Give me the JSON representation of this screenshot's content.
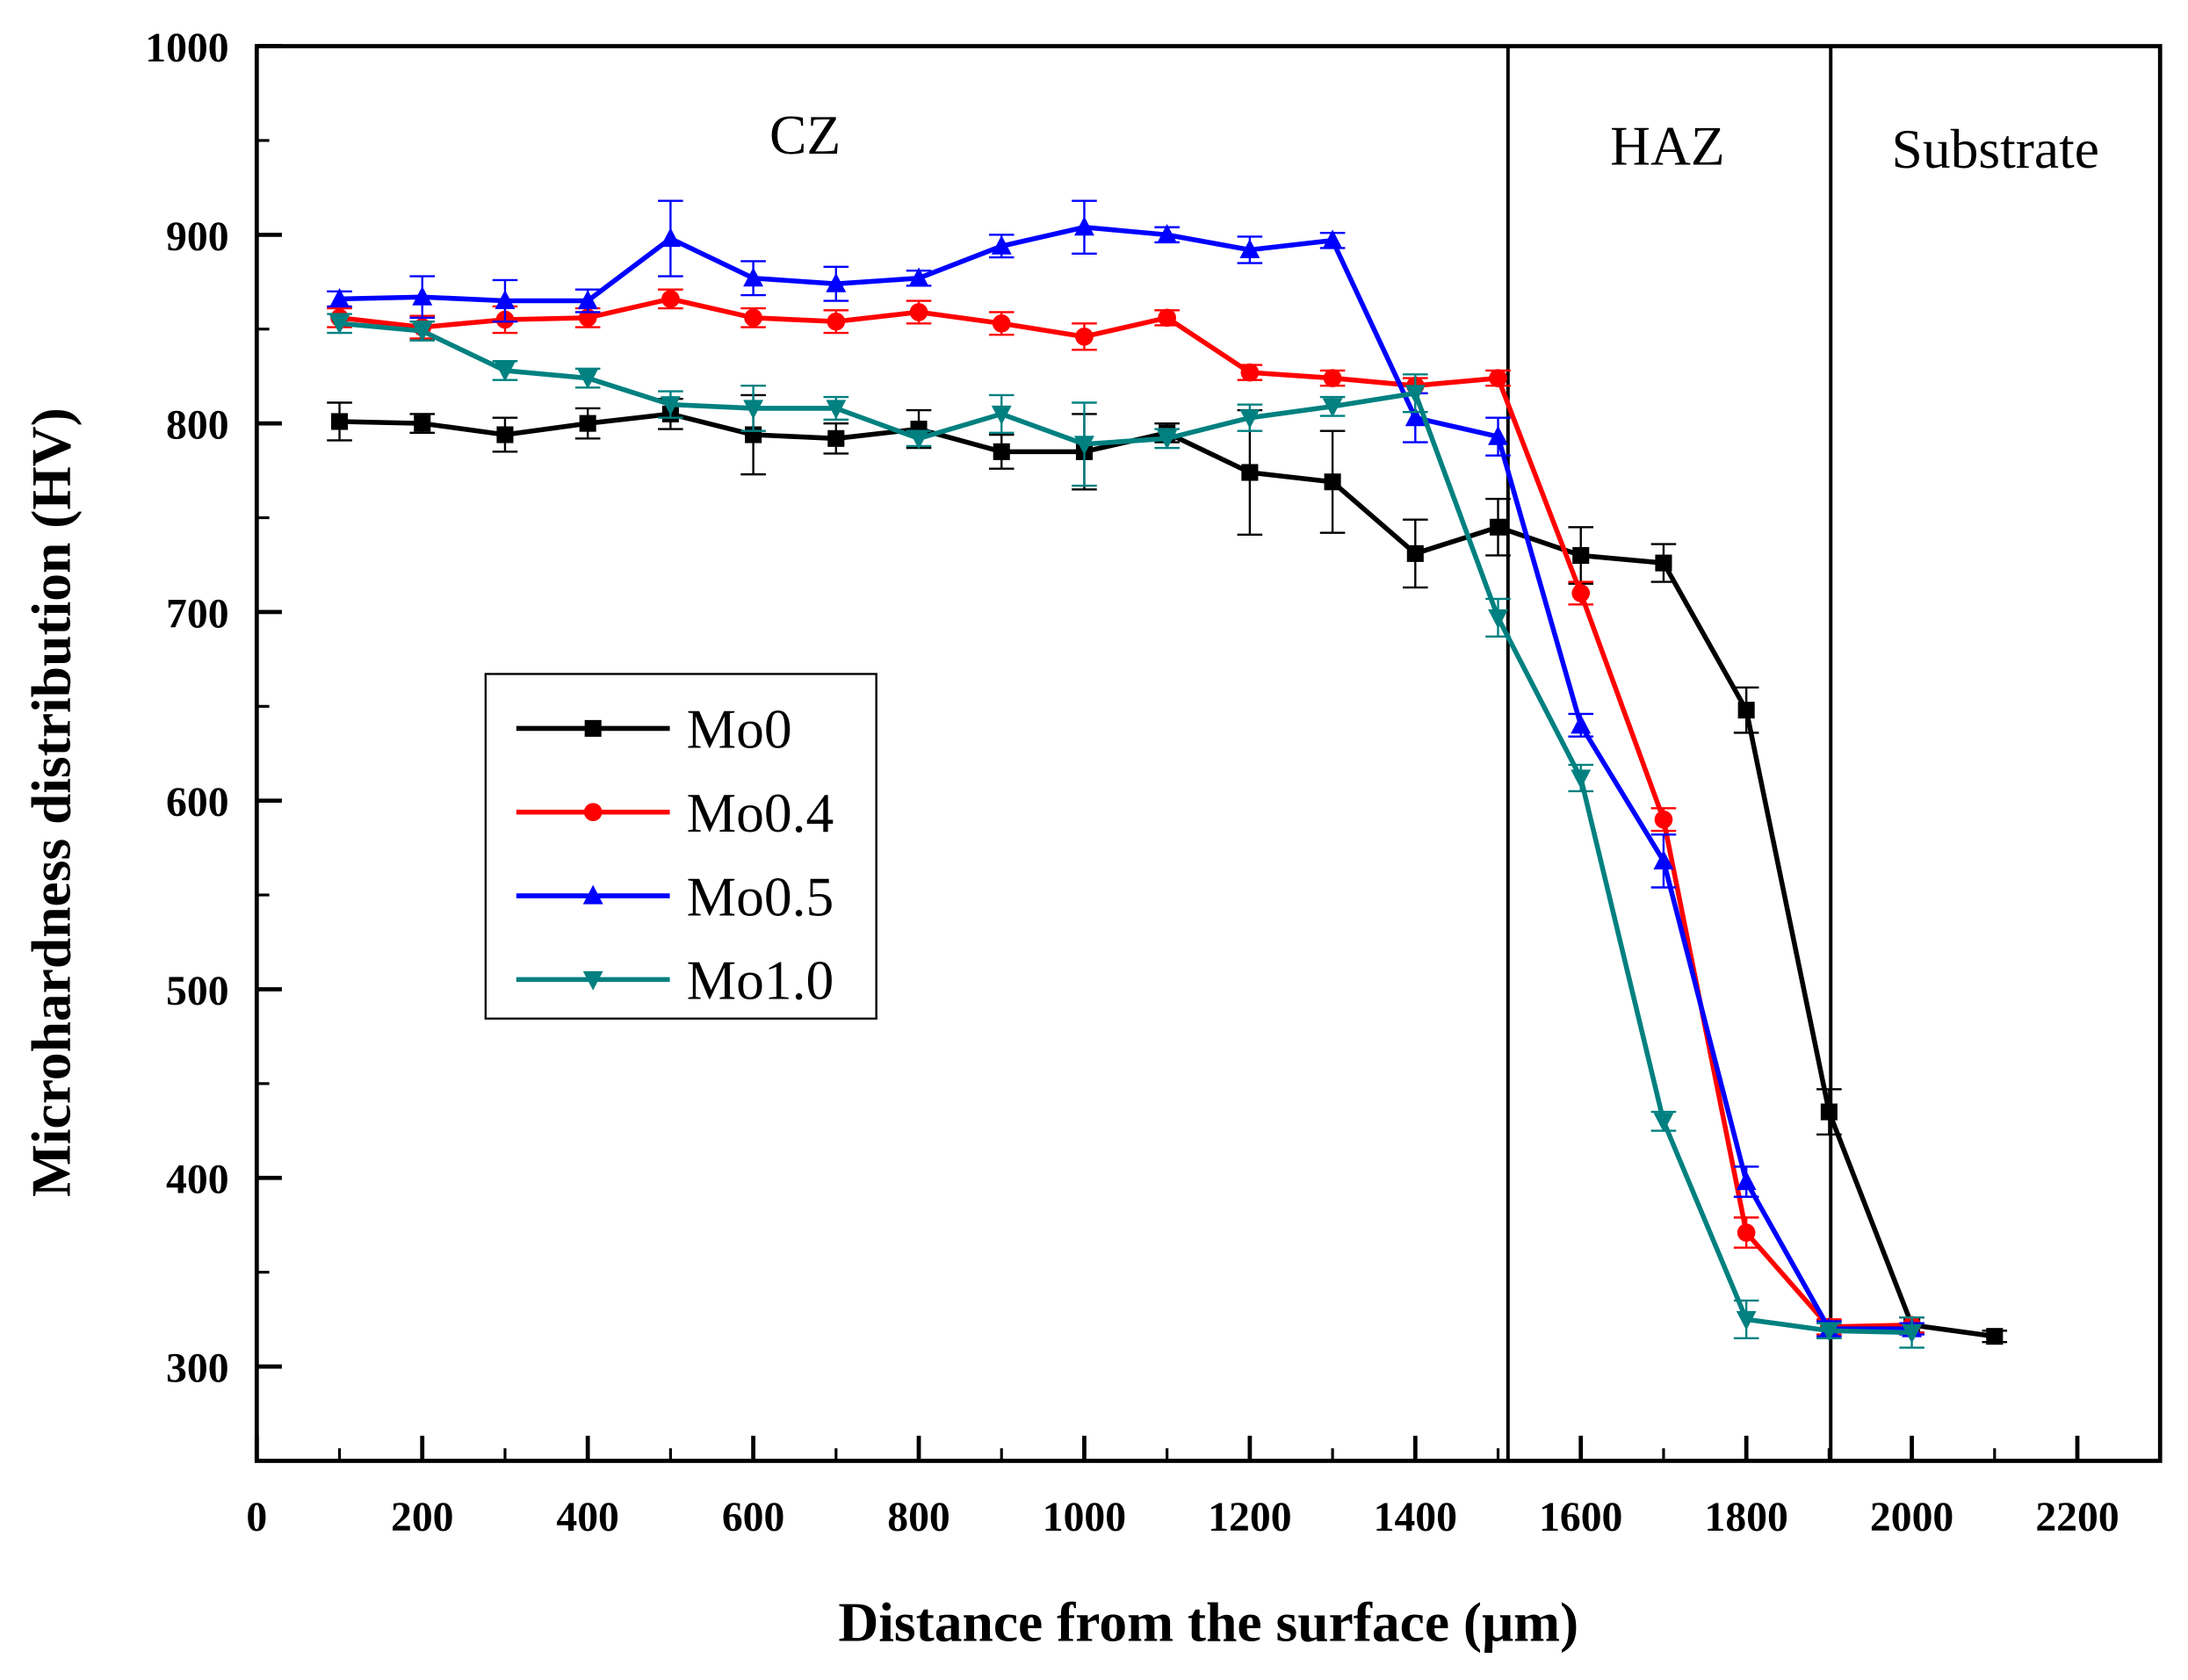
{
  "chart_data": {
    "type": "line",
    "title": "",
    "xlabel": "Distance from the surface (μm)",
    "ylabel": "Microhardness distribution (HV)",
    "xlim": [
      0,
      2300
    ],
    "ylim": [
      250,
      1000
    ],
    "xticks": [
      0,
      200,
      400,
      600,
      800,
      1000,
      1200,
      1400,
      1600,
      1800,
      2000,
      2200
    ],
    "yticks": [
      300,
      400,
      500,
      600,
      700,
      800,
      900,
      1000
    ],
    "grid": false,
    "legend_position": "center-left",
    "zones": [
      {
        "label": "CZ",
        "from": 0,
        "to": 1512
      },
      {
        "label": "HAZ",
        "from": 1512,
        "to": 1902
      },
      {
        "label": "Substrate",
        "from": 1902,
        "to": 2300
      }
    ],
    "series": [
      {
        "name": "Mo0",
        "color": "#000000",
        "marker": "square",
        "x": [
          100,
          200,
          300,
          400,
          500,
          600,
          700,
          800,
          900,
          1000,
          1100,
          1200,
          1300,
          1400,
          1500,
          1600,
          1700,
          1800,
          1900,
          2000,
          2100
        ],
        "y": [
          801,
          800,
          794,
          800,
          805,
          794,
          792,
          797,
          785,
          785,
          795,
          774,
          769,
          731,
          745,
          730,
          726,
          648,
          435,
          322,
          316
        ],
        "err": [
          10,
          5,
          9,
          8,
          8,
          21,
          8,
          10,
          9,
          20,
          5,
          33,
          27,
          18,
          15,
          15,
          10,
          12,
          12,
          4,
          3
        ]
      },
      {
        "name": "Mo0.4",
        "color": "#ff0000",
        "marker": "circle",
        "x": [
          100,
          200,
          300,
          400,
          500,
          600,
          700,
          800,
          900,
          1000,
          1100,
          1200,
          1300,
          1400,
          1500,
          1600,
          1700,
          1800,
          1900,
          2000
        ],
        "y": [
          856,
          851,
          855,
          856,
          866,
          856,
          854,
          859,
          853,
          846,
          856,
          827,
          824,
          820,
          824,
          710,
          590,
          371,
          321,
          322
        ],
        "err": [
          5,
          6,
          7,
          5,
          5,
          5,
          6,
          6,
          6,
          7,
          4,
          4,
          4,
          4,
          4,
          6,
          6,
          8,
          4,
          4
        ]
      },
      {
        "name": "Mo0.5",
        "color": "#0000ff",
        "marker": "triangle-up",
        "x": [
          100,
          200,
          300,
          400,
          500,
          600,
          700,
          800,
          900,
          1000,
          1100,
          1200,
          1300,
          1400,
          1500,
          1600,
          1700,
          1800,
          1900,
          2000
        ],
        "y": [
          866,
          867,
          865,
          865,
          898,
          877,
          874,
          877,
          894,
          904,
          900,
          892,
          897,
          803,
          793,
          640,
          568,
          398,
          320,
          320
        ],
        "err": [
          4,
          11,
          11,
          6,
          20,
          9,
          9,
          4,
          6,
          14,
          4,
          7,
          4,
          13,
          10,
          6,
          14,
          8,
          4,
          3
        ]
      },
      {
        "name": "Mo1.0",
        "color": "#008080",
        "marker": "triangle-down",
        "x": [
          100,
          200,
          300,
          400,
          500,
          600,
          700,
          800,
          900,
          1000,
          1100,
          1200,
          1300,
          1400,
          1500,
          1600,
          1700,
          1800,
          1900,
          2000
        ],
        "y": [
          853,
          849,
          828,
          824,
          810,
          808,
          808,
          792,
          805,
          789,
          792,
          803,
          809,
          816,
          697,
          612,
          430,
          325,
          319,
          318
        ],
        "err": [
          5,
          5,
          5,
          5,
          7,
          12,
          6,
          4,
          10,
          22,
          5,
          7,
          5,
          10,
          10,
          7,
          5,
          10,
          4,
          8
        ]
      }
    ]
  }
}
